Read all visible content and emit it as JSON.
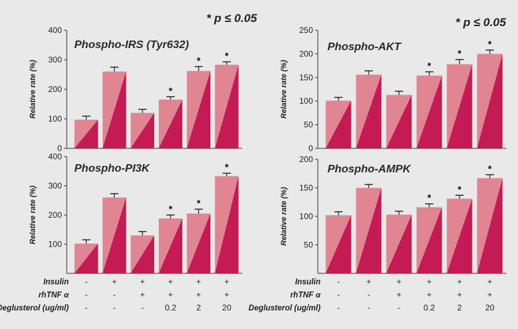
{
  "significance_note": "* p ≤ 0.05",
  "colors": {
    "background": "#e9e9e9",
    "bar_light": "#e08591",
    "bar_dark": "#c41b54",
    "axis": "#333333",
    "error_bar": "#222222"
  },
  "conditions": {
    "rows": [
      {
        "label": "Insulin",
        "values": [
          "-",
          "+",
          "+",
          "+",
          "+",
          "+"
        ]
      },
      {
        "label": "rhTNF α",
        "values": [
          "-",
          "-",
          "+",
          "+",
          "+",
          "+"
        ]
      },
      {
        "label": "Deglusterol (ug/ml)",
        "values": [
          "-",
          "-",
          "-",
          "0.2",
          "2",
          "20"
        ]
      }
    ]
  },
  "chart_data": [
    {
      "type": "bar",
      "title": "Phospho-IRS (Tyr632)",
      "ylabel": "Relative rate (%)",
      "ylim": [
        0,
        400
      ],
      "yticks": [
        0,
        100,
        200,
        300,
        400
      ],
      "values": [
        97,
        260,
        120,
        165,
        262,
        283
      ],
      "errors": [
        12,
        15,
        12,
        10,
        15,
        10
      ],
      "significant": [
        false,
        false,
        false,
        true,
        true,
        true
      ]
    },
    {
      "type": "bar",
      "title": "Phospho-AKT",
      "ylabel": "Relative rate (%)",
      "ylim": [
        0,
        250
      ],
      "yticks": [
        0,
        50,
        100,
        150,
        200,
        250
      ],
      "values": [
        101,
        156,
        113,
        154,
        178,
        200
      ],
      "errors": [
        7,
        8,
        8,
        8,
        10,
        8
      ],
      "significant": [
        false,
        false,
        false,
        true,
        true,
        true
      ]
    },
    {
      "type": "bar",
      "title": "Phospho-PI3K",
      "ylabel": "Relative rate (%)",
      "ylim": [
        0,
        400
      ],
      "yticks": [
        100,
        200,
        300,
        400
      ],
      "values": [
        102,
        260,
        130,
        188,
        205,
        333
      ],
      "errors": [
        13,
        13,
        13,
        12,
        15,
        10
      ],
      "significant": [
        false,
        false,
        false,
        true,
        true,
        true
      ]
    },
    {
      "type": "bar",
      "title": "Phospho-AMPK",
      "ylabel": "Relative rate (%)",
      "ylim": [
        0,
        200
      ],
      "yticks": [
        50,
        100,
        150,
        200
      ],
      "values": [
        102,
        150,
        103,
        116,
        131,
        167
      ],
      "errors": [
        6,
        6,
        6,
        6,
        6,
        6
      ],
      "significant": [
        false,
        false,
        false,
        true,
        true,
        true
      ]
    }
  ]
}
